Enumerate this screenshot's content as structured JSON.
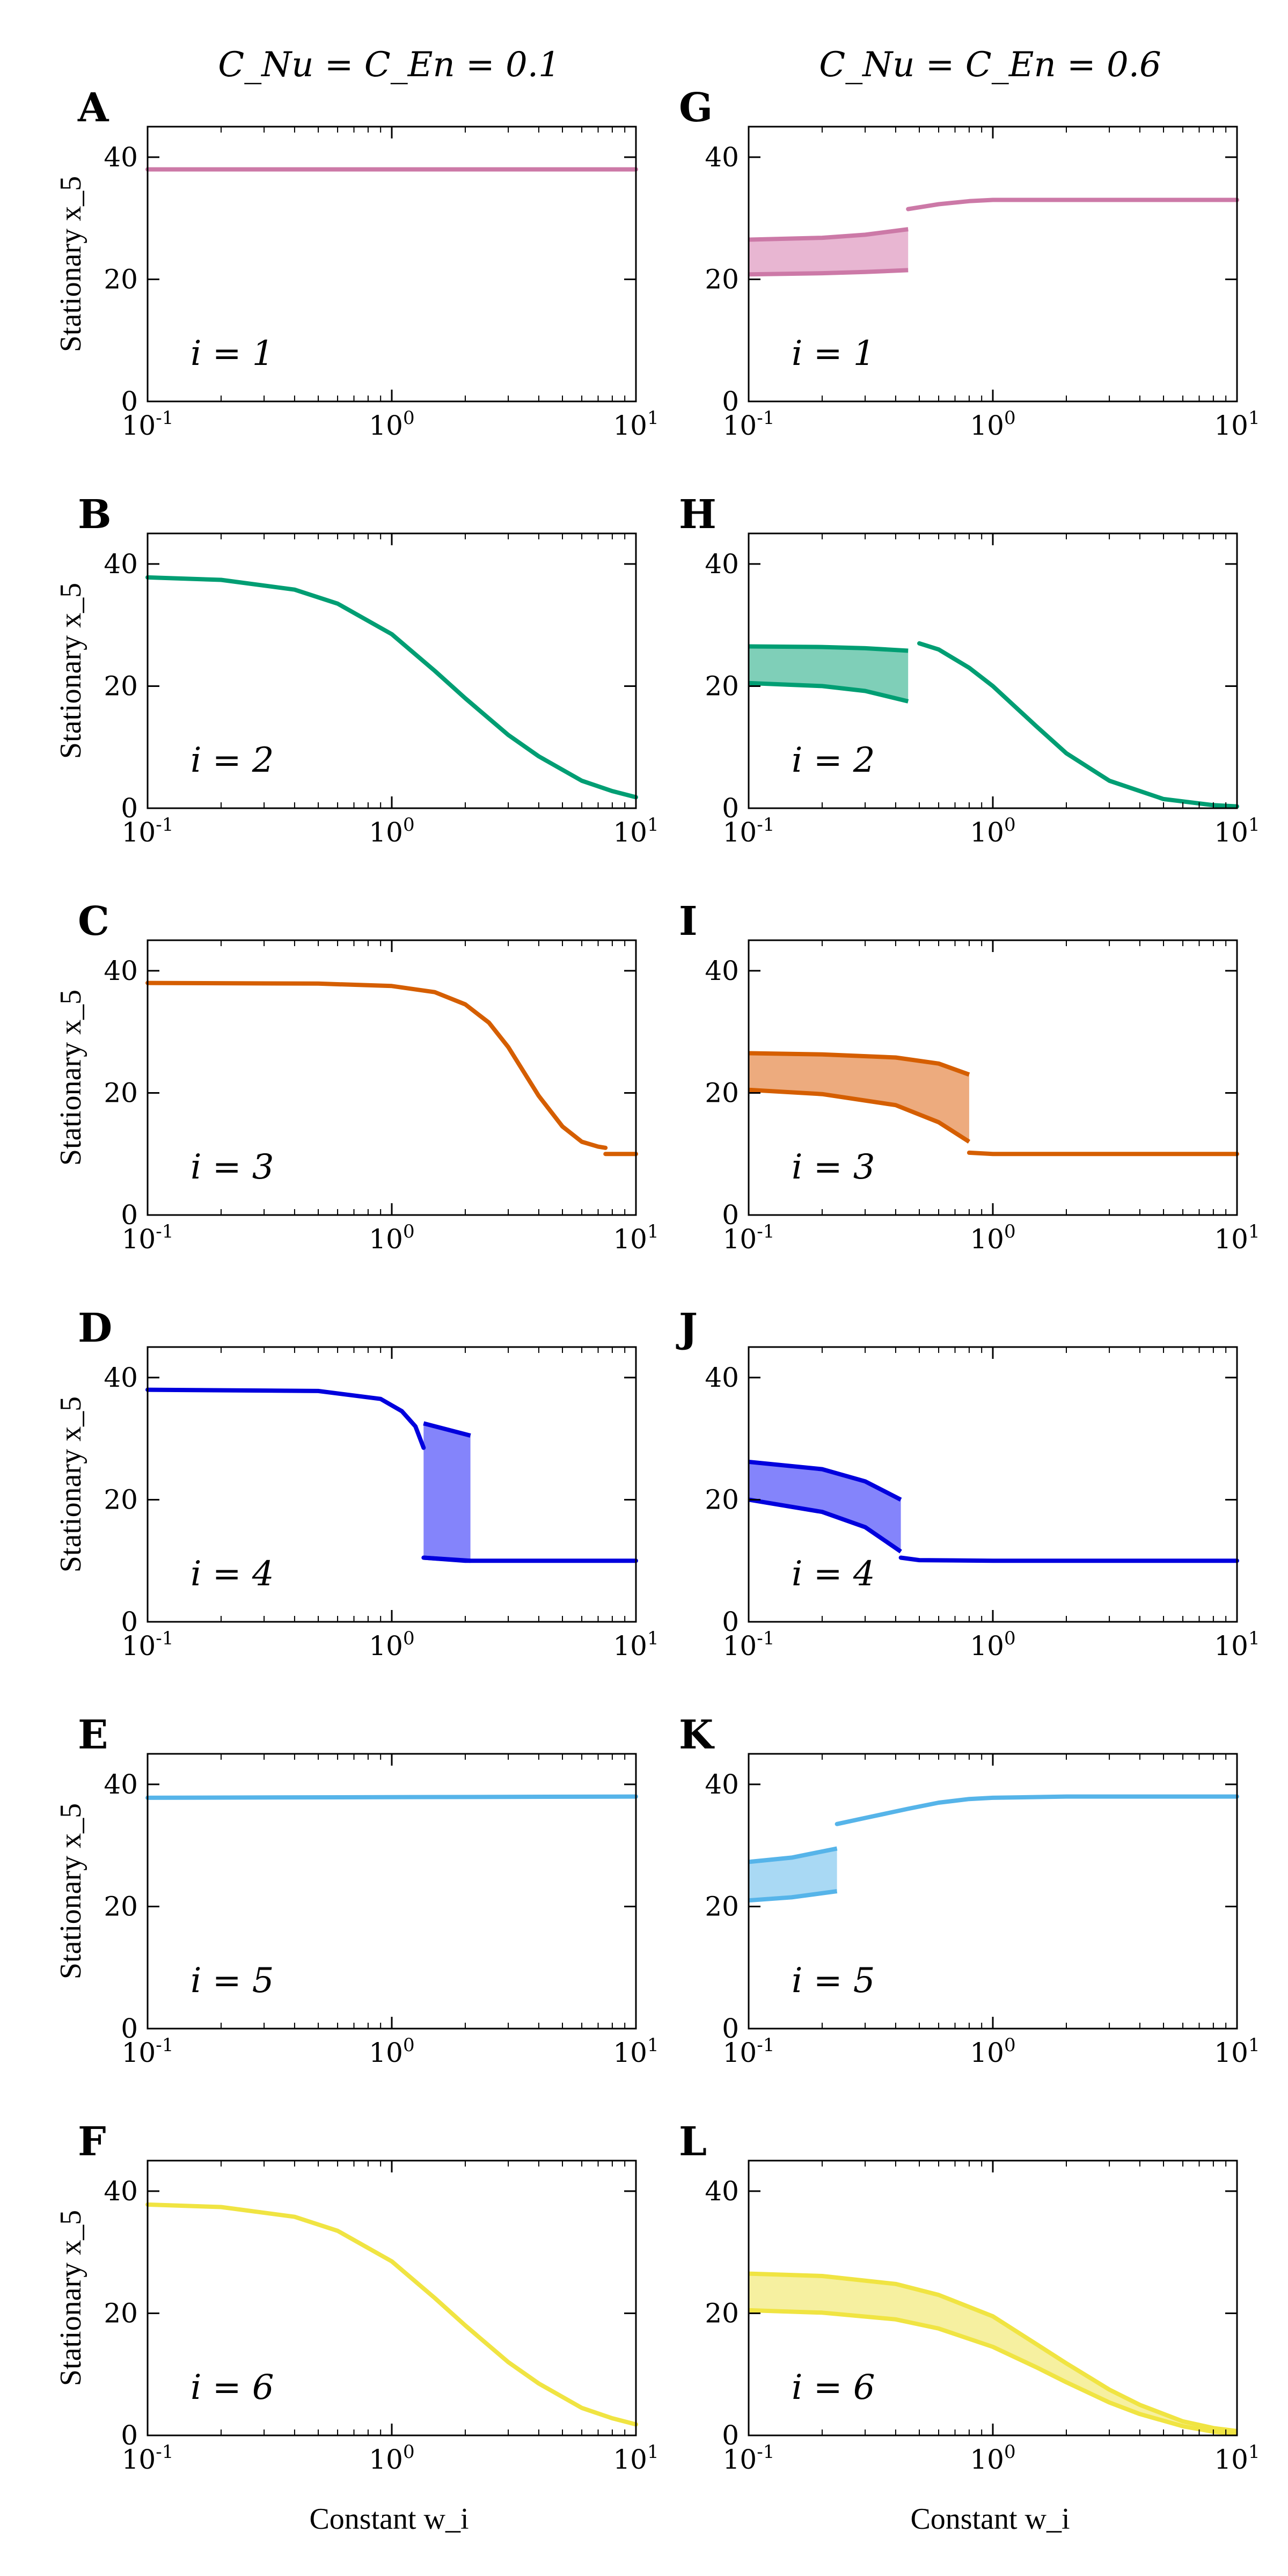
{
  "figure": {
    "column_titles": [
      "C_Nu = C_En = 0.1",
      "C_Nu = C_En = 0.6"
    ],
    "ylabel": "Stationary x_5",
    "xlabel": "Constant w_i"
  },
  "chart_data": [
    {
      "letter": "A",
      "type": "line",
      "i_label": "i = 1",
      "color": "#cc79a7",
      "xscale": "log",
      "xlim": [
        0.1,
        10
      ],
      "ylim": [
        0,
        45
      ],
      "xticks": [
        "10^-1",
        "10^0",
        "10^1"
      ],
      "yticks": [
        0,
        20,
        40
      ],
      "series": [
        {
          "name": "stable",
          "x": [
            0.1,
            10
          ],
          "y": [
            38,
            38
          ]
        }
      ],
      "bands": []
    },
    {
      "letter": "B",
      "type": "line",
      "i_label": "i = 2",
      "color": "#009e73",
      "xscale": "log",
      "xlim": [
        0.1,
        10
      ],
      "ylim": [
        0,
        45
      ],
      "xticks": [
        "10^-1",
        "10^0",
        "10^1"
      ],
      "yticks": [
        0,
        20,
        40
      ],
      "series": [
        {
          "name": "stable",
          "x": [
            0.1,
            0.2,
            0.4,
            0.6,
            1,
            1.5,
            2,
            3,
            4,
            6,
            8,
            10
          ],
          "y": [
            37.8,
            37.4,
            35.8,
            33.5,
            28.5,
            22.5,
            18,
            12,
            8.5,
            4.5,
            2.8,
            1.8
          ]
        }
      ],
      "bands": []
    },
    {
      "letter": "C",
      "type": "line",
      "i_label": "i = 3",
      "color": "#d55e00",
      "xscale": "log",
      "xlim": [
        0.1,
        10
      ],
      "ylim": [
        0,
        45
      ],
      "xticks": [
        "10^-1",
        "10^0",
        "10^1"
      ],
      "yticks": [
        0,
        20,
        40
      ],
      "series": [
        {
          "name": "stable",
          "x": [
            0.1,
            0.5,
            1,
            1.5,
            2,
            2.5,
            3,
            4,
            5,
            6,
            7,
            7.5
          ],
          "y": [
            38,
            37.9,
            37.5,
            36.5,
            34.5,
            31.5,
            27.5,
            19.5,
            14.5,
            12,
            11.2,
            11
          ]
        },
        {
          "name": "low",
          "x": [
            7.5,
            10
          ],
          "y": [
            10,
            10
          ]
        }
      ],
      "bands": []
    },
    {
      "letter": "D",
      "type": "line",
      "i_label": "i = 4",
      "color": "#0000dd",
      "fill_color": "#8484fb",
      "xscale": "log",
      "xlim": [
        0.1,
        10
      ],
      "ylim": [
        0,
        45
      ],
      "xticks": [
        "10^-1",
        "10^0",
        "10^1"
      ],
      "yticks": [
        0,
        20,
        40
      ],
      "series": [
        {
          "name": "upper",
          "x": [
            0.1,
            0.5,
            0.9,
            1.1,
            1.25,
            1.35
          ],
          "y": [
            38,
            37.8,
            36.5,
            34.5,
            32,
            28.5
          ]
        },
        {
          "name": "lower",
          "x": [
            1.35,
            2,
            5,
            10
          ],
          "y": [
            10.5,
            10,
            10,
            10
          ]
        }
      ],
      "bands": [
        {
          "x0": 1.35,
          "x1": 2.1,
          "top": [
            32.5,
            30.5
          ],
          "bottom": [
            10.5,
            10
          ]
        }
      ]
    },
    {
      "letter": "E",
      "type": "line",
      "i_label": "i = 5",
      "color": "#56b4e9",
      "xscale": "log",
      "xlim": [
        0.1,
        10
      ],
      "ylim": [
        0,
        45
      ],
      "xticks": [
        "10^-1",
        "10^0",
        "10^1"
      ],
      "yticks": [
        0,
        20,
        40
      ],
      "series": [
        {
          "name": "stable",
          "x": [
            0.1,
            10
          ],
          "y": [
            37.8,
            38
          ]
        }
      ],
      "bands": []
    },
    {
      "letter": "F",
      "type": "line",
      "i_label": "i = 6",
      "color": "#f0e442",
      "xscale": "log",
      "xlim": [
        0.1,
        10
      ],
      "ylim": [
        0,
        45
      ],
      "xticks": [
        "10^-1",
        "10^0",
        "10^1"
      ],
      "yticks": [
        0,
        20,
        40
      ],
      "series": [
        {
          "name": "stable",
          "x": [
            0.1,
            0.2,
            0.4,
            0.6,
            1,
            1.5,
            2,
            3,
            4,
            6,
            8,
            10
          ],
          "y": [
            37.8,
            37.4,
            35.8,
            33.5,
            28.5,
            22.5,
            18,
            12,
            8.5,
            4.5,
            2.8,
            1.8
          ]
        }
      ],
      "bands": []
    },
    {
      "letter": "G",
      "type": "line",
      "i_label": "i = 1",
      "color": "#cc79a7",
      "fill_color": "#e8b6d2",
      "xscale": "log",
      "xlim": [
        0.1,
        10
      ],
      "ylim": [
        0,
        45
      ],
      "xticks": [
        "10^-1",
        "10^0",
        "10^1"
      ],
      "yticks": [
        0,
        20,
        40
      ],
      "series": [
        {
          "name": "upper",
          "x": [
            0.45,
            0.6,
            0.8,
            1,
            1.5,
            3,
            10
          ],
          "y": [
            31.5,
            32.3,
            32.8,
            33,
            33,
            33,
            33
          ]
        }
      ],
      "bands": [
        {
          "x": [
            0.1,
            0.2,
            0.3,
            0.45
          ],
          "top": [
            26.5,
            26.8,
            27.3,
            28.2
          ],
          "bottom": [
            20.8,
            21,
            21.2,
            21.5
          ]
        }
      ]
    },
    {
      "letter": "H",
      "type": "line",
      "i_label": "i = 2",
      "color": "#009e73",
      "fill_color": "#7fcfb8",
      "xscale": "log",
      "xlim": [
        0.1,
        10
      ],
      "ylim": [
        0,
        45
      ],
      "xticks": [
        "10^-1",
        "10^0",
        "10^1"
      ],
      "yticks": [
        0,
        20,
        40
      ],
      "series": [
        {
          "name": "stable",
          "x": [
            0.5,
            0.6,
            0.8,
            1,
            1.5,
            2,
            3,
            5,
            8,
            10
          ],
          "y": [
            27,
            26,
            23,
            20,
            13.5,
            9,
            4.5,
            1.5,
            0.5,
            0.3
          ]
        }
      ],
      "bands": [
        {
          "x": [
            0.1,
            0.2,
            0.3,
            0.45
          ],
          "top": [
            26.5,
            26.4,
            26.2,
            25.8
          ],
          "bottom": [
            20.5,
            20,
            19.2,
            17.5
          ]
        }
      ]
    },
    {
      "letter": "I",
      "type": "line",
      "i_label": "i = 3",
      "color": "#d55e00",
      "fill_color": "#edab7e",
      "xscale": "log",
      "xlim": [
        0.1,
        10
      ],
      "ylim": [
        0,
        45
      ],
      "xticks": [
        "10^-1",
        "10^0",
        "10^1"
      ],
      "yticks": [
        0,
        20,
        40
      ],
      "series": [
        {
          "name": "low",
          "x": [
            0.8,
            1,
            3,
            10
          ],
          "y": [
            10.2,
            10,
            10,
            10
          ]
        }
      ],
      "bands": [
        {
          "x": [
            0.1,
            0.2,
            0.4,
            0.6,
            0.8
          ],
          "top": [
            26.5,
            26.3,
            25.8,
            24.8,
            23
          ],
          "bottom": [
            20.5,
            19.8,
            18,
            15.2,
            12
          ]
        }
      ]
    },
    {
      "letter": "J",
      "type": "line",
      "i_label": "i = 4",
      "color": "#0000dd",
      "fill_color": "#8484fb",
      "xscale": "log",
      "xlim": [
        0.1,
        10
      ],
      "ylim": [
        0,
        45
      ],
      "xticks": [
        "10^-1",
        "10^0",
        "10^1"
      ],
      "yticks": [
        0,
        20,
        40
      ],
      "series": [
        {
          "name": "low",
          "x": [
            0.42,
            0.5,
            1,
            3,
            10
          ],
          "y": [
            10.5,
            10.1,
            10,
            10,
            10
          ]
        }
      ],
      "bands": [
        {
          "x": [
            0.1,
            0.2,
            0.3,
            0.42
          ],
          "top": [
            26.2,
            25,
            23,
            20
          ],
          "bottom": [
            20,
            18,
            15.5,
            11.5
          ]
        }
      ]
    },
    {
      "letter": "K",
      "type": "line",
      "i_label": "i = 5",
      "color": "#56b4e9",
      "fill_color": "#a9d9f4",
      "xscale": "log",
      "xlim": [
        0.1,
        10
      ],
      "ylim": [
        0,
        45
      ],
      "xticks": [
        "10^-1",
        "10^0",
        "10^1"
      ],
      "yticks": [
        0,
        20,
        40
      ],
      "series": [
        {
          "name": "upper",
          "x": [
            0.23,
            0.3,
            0.45,
            0.6,
            0.8,
            1,
            2,
            10
          ],
          "y": [
            33.5,
            34.5,
            36,
            37,
            37.6,
            37.8,
            38,
            38
          ]
        }
      ],
      "bands": [
        {
          "x": [
            0.1,
            0.15,
            0.23
          ],
          "top": [
            27.3,
            28,
            29.5
          ],
          "bottom": [
            21,
            21.5,
            22.5
          ]
        }
      ]
    },
    {
      "letter": "L",
      "type": "line",
      "i_label": "i = 6",
      "color": "#f0e442",
      "fill_color": "#f6f0a0",
      "xscale": "log",
      "xlim": [
        0.1,
        10
      ],
      "ylim": [
        0,
        45
      ],
      "xticks": [
        "10^-1",
        "10^0",
        "10^1"
      ],
      "yticks": [
        0,
        20,
        40
      ],
      "series": [],
      "bands": [
        {
          "x": [
            0.1,
            0.2,
            0.4,
            0.6,
            1,
            1.5,
            2,
            3,
            4,
            6,
            8,
            10
          ],
          "top": [
            26.5,
            26.1,
            24.8,
            23,
            19.5,
            15,
            11.8,
            7.5,
            5,
            2.3,
            1.2,
            0.7
          ],
          "bottom": [
            20.5,
            20.1,
            19,
            17.5,
            14.5,
            11.2,
            8.7,
            5.4,
            3.5,
            1.5,
            0.6,
            0.3
          ]
        }
      ]
    }
  ]
}
